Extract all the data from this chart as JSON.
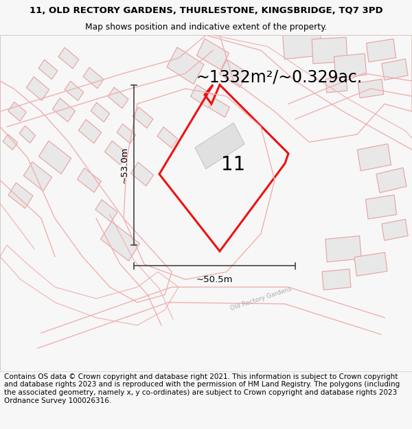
{
  "title_line1": "11, OLD RECTORY GARDENS, THURLESTONE, KINGSBRIDGE, TQ7 3PD",
  "title_line2": "Map shows position and indicative extent of the property.",
  "area_text": "~1332m²/~0.329ac.",
  "number_label": "11",
  "dim_vertical": "~53.0m",
  "dim_horizontal": "~50.5m",
  "footer_text": "Contains OS data © Crown copyright and database right 2021. This information is subject to Crown copyright and database rights 2023 and is reproduced with the permission of HM Land Registry. The polygons (including the associated geometry, namely x, y co-ordinates) are subject to Crown copyright and database rights 2023 Ordnance Survey 100026316.",
  "bg_color": "#f7f7f7",
  "map_bg": "#ffffff",
  "building_fill": "#e8e8e8",
  "building_edge": "#e8a0a0",
  "road_line_color": "#f0b0b0",
  "red_color": "#ee1111",
  "title_fontsize": 9.5,
  "subtitle_fontsize": 8.8,
  "area_fontsize": 17,
  "number_fontsize": 20,
  "dim_fontsize": 9.5,
  "footer_fontsize": 7.5,
  "street_label": "Old Rectory Gardens"
}
